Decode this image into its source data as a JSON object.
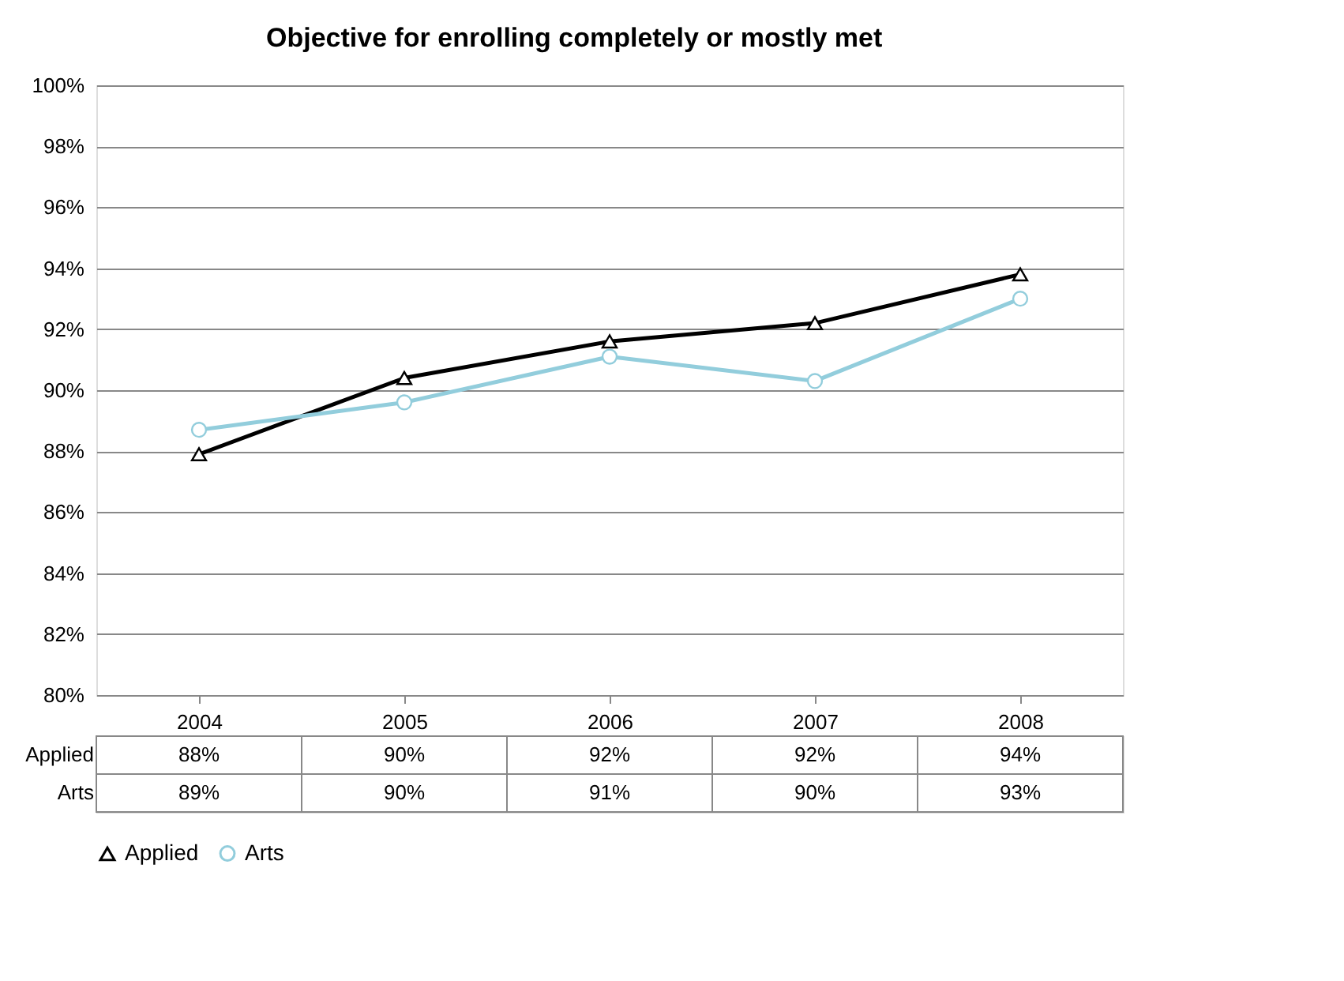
{
  "chart_data": {
    "type": "line",
    "title": "Objective for enrolling completely or mostly met",
    "categories": [
      "2004",
      "2005",
      "2006",
      "2007",
      "2008"
    ],
    "series": [
      {
        "name": "Applied",
        "color": "#000000",
        "marker": "triangle",
        "values": [
          87.9,
          90.4,
          91.6,
          92.2,
          93.8
        ],
        "value_labels": [
          "88%",
          "90%",
          "92%",
          "92%",
          "94%"
        ]
      },
      {
        "name": "Arts",
        "color": "#92cddc",
        "marker": "circle",
        "values": [
          88.7,
          89.6,
          91.1,
          90.3,
          93.0
        ],
        "value_labels": [
          "89%",
          "90%",
          "91%",
          "90%",
          "93%"
        ]
      }
    ],
    "ylim": [
      80,
      100
    ],
    "yticks": [
      {
        "value": 80,
        "label": "80%"
      },
      {
        "value": 82,
        "label": "82%"
      },
      {
        "value": 84,
        "label": "84%"
      },
      {
        "value": 86,
        "label": "86%"
      },
      {
        "value": 88,
        "label": "88%"
      },
      {
        "value": 90,
        "label": "90%"
      },
      {
        "value": 92,
        "label": "92%"
      },
      {
        "value": 94,
        "label": "94%"
      },
      {
        "value": 96,
        "label": "96%"
      },
      {
        "value": 98,
        "label": "98%"
      },
      {
        "value": 100,
        "label": "100%"
      }
    ],
    "grid": "y",
    "legend": "bottom",
    "line_style": "solid"
  }
}
